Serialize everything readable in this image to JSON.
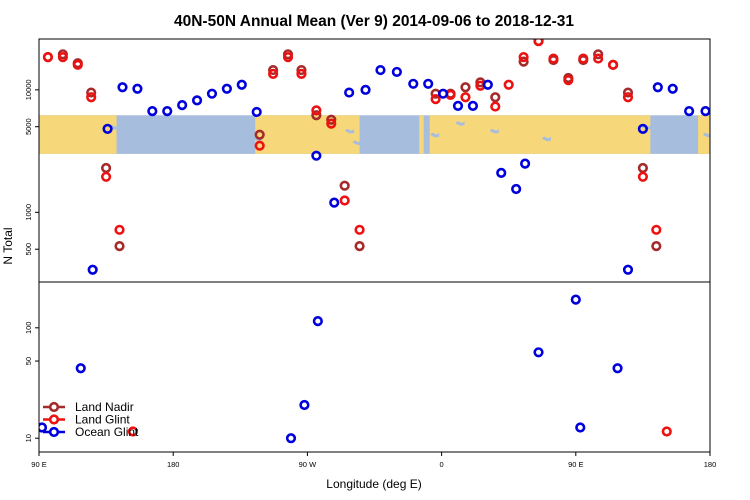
{
  "chart_data": {
    "type": "scatter",
    "title": "40N-50N Annual Mean (Ver 9)   2014-09-06 to 2018-12-31",
    "xlabel": "Longitude (deg E)",
    "ylabel": "N Total",
    "x_ticks": [
      {
        "value": 90,
        "label": "90 E"
      },
      {
        "value": 180,
        "label": "180"
      },
      {
        "value": 270,
        "label": "90 W"
      },
      {
        "value": 360,
        "label": "0"
      },
      {
        "value": 450,
        "label": "90 E"
      },
      {
        "value": 540,
        "label": "180"
      }
    ],
    "xlim": [
      90,
      540
    ],
    "x_scale": "linear",
    "top_panel": {
      "y_scale": "log",
      "ylim": [
        270,
        26000
      ],
      "y_ticks": [
        500,
        1000,
        5000,
        10000
      ],
      "map_band": {
        "lat_range": "40N-50N",
        "y_range": [
          3000,
          6200
        ]
      }
    },
    "bottom_panel": {
      "y_scale": "log",
      "ylim": [
        7.5,
        260
      ],
      "y_ticks": [
        10,
        50,
        100
      ]
    },
    "series": [
      {
        "name": "Land Nadir",
        "color": "#a52a2a",
        "panel": "top",
        "points": [
          [
            96,
            18500
          ],
          [
            106,
            19500
          ],
          [
            116,
            16500
          ],
          [
            125,
            9500
          ],
          [
            135,
            2300
          ],
          [
            144,
            530
          ],
          [
            238,
            4300
          ],
          [
            247,
            14500
          ],
          [
            257,
            19500
          ],
          [
            266,
            14500
          ],
          [
            276,
            6200
          ],
          [
            286,
            5700
          ],
          [
            295,
            1650
          ],
          [
            305,
            530
          ],
          [
            356,
            9300
          ],
          [
            366,
            9300
          ],
          [
            376,
            10500
          ],
          [
            386,
            11500
          ],
          [
            396,
            8700
          ],
          [
            415,
            17000
          ],
          [
            425,
            25000
          ],
          [
            435,
            17500
          ],
          [
            445,
            12500
          ],
          [
            455,
            17500
          ],
          [
            465,
            19500
          ],
          [
            475,
            16000
          ],
          [
            485,
            9500
          ],
          [
            495,
            2300
          ],
          [
            504,
            530
          ]
        ]
      },
      {
        "name": "Land Glint",
        "color": "#ee1111",
        "panel": "top",
        "points": [
          [
            96,
            18500
          ],
          [
            106,
            18500
          ],
          [
            116,
            16000
          ],
          [
            125,
            8700
          ],
          [
            135,
            1950
          ],
          [
            144,
            720
          ],
          [
            238,
            3500
          ],
          [
            247,
            13500
          ],
          [
            257,
            18500
          ],
          [
            266,
            13500
          ],
          [
            276,
            6800
          ],
          [
            286,
            5300
          ],
          [
            295,
            1250
          ],
          [
            305,
            720
          ],
          [
            356,
            8400
          ],
          [
            366,
            9100
          ],
          [
            376,
            8700
          ],
          [
            386,
            10800
          ],
          [
            396,
            7300
          ],
          [
            405,
            11000
          ],
          [
            415,
            18500
          ],
          [
            425,
            25000
          ],
          [
            435,
            18000
          ],
          [
            445,
            12000
          ],
          [
            455,
            18000
          ],
          [
            465,
            18000
          ],
          [
            475,
            16000
          ],
          [
            485,
            8700
          ],
          [
            495,
            1950
          ],
          [
            504,
            720
          ]
        ]
      },
      {
        "name": "Ocean Glint",
        "color": "#0000dd",
        "panel": "top",
        "points": [
          [
            126,
            340
          ],
          [
            136,
            4800
          ],
          [
            146,
            10500
          ],
          [
            156,
            10200
          ],
          [
            166,
            6700
          ],
          [
            176,
            6700
          ],
          [
            186,
            7500
          ],
          [
            196,
            8200
          ],
          [
            206,
            9300
          ],
          [
            216,
            10200
          ],
          [
            226,
            11000
          ],
          [
            236,
            6600
          ],
          [
            276,
            2900
          ],
          [
            288,
            1200
          ],
          [
            298,
            9500
          ],
          [
            309,
            10000
          ],
          [
            319,
            14500
          ],
          [
            330,
            14000
          ],
          [
            341,
            11200
          ],
          [
            351,
            11200
          ],
          [
            361,
            9300
          ],
          [
            371,
            7400
          ],
          [
            381,
            7400
          ],
          [
            391,
            11000
          ],
          [
            400,
            2100
          ],
          [
            410,
            1550
          ],
          [
            416,
            2500
          ],
          [
            485,
            340
          ],
          [
            495,
            4800
          ],
          [
            505,
            10500
          ],
          [
            515,
            10200
          ],
          [
            526,
            6700
          ],
          [
            537,
            6700
          ]
        ]
      },
      {
        "name": "Land Glint",
        "color": "#ee1111",
        "panel": "bottom",
        "points": [
          [
            153,
            11.5
          ],
          [
            511,
            11.5
          ]
        ]
      },
      {
        "name": "Ocean Glint",
        "color": "#0000dd",
        "panel": "bottom",
        "points": [
          [
            92,
            12.5
          ],
          [
            118,
            43
          ],
          [
            259,
            10
          ],
          [
            268,
            20
          ],
          [
            277,
            115
          ],
          [
            425,
            60
          ],
          [
            450,
            180
          ],
          [
            453,
            12.5
          ],
          [
            478,
            43
          ]
        ]
      }
    ],
    "legend": {
      "placement": "bottom-left",
      "entries": [
        {
          "label": "Land Nadir",
          "color": "#a52a2a"
        },
        {
          "label": "Land Glint",
          "color": "#ee1111"
        },
        {
          "label": "Ocean Glint",
          "color": "#0000dd"
        }
      ]
    },
    "colors": {
      "land": "#f6d77a",
      "ocean": "#a7bddd"
    }
  }
}
